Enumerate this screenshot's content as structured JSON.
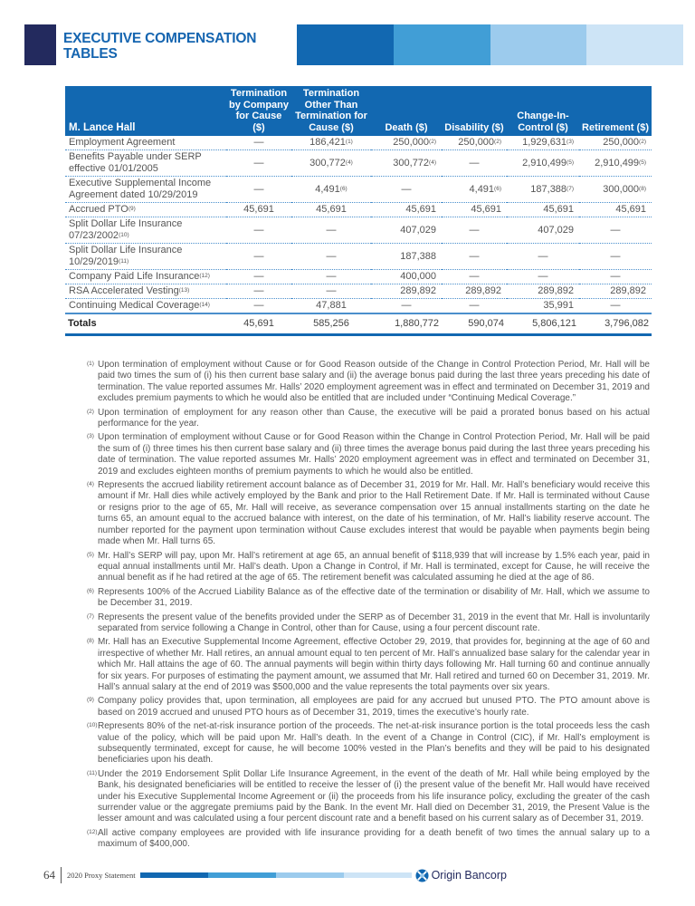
{
  "header": {
    "title_line1": "EXECUTIVE COMPENSATION",
    "title_line2": "TABLES",
    "bar_colors": [
      "#1268b1",
      "#419ed6",
      "#9ccbed",
      "#cde4f6"
    ],
    "square_color": "#232a5e"
  },
  "table": {
    "columns": [
      "M. Lance Hall",
      "Termination by Company for Cause ($)",
      "Termination Other Than Termination for Cause ($)",
      "Death ($)",
      "Disability ($)",
      "Change-In-Control ($)",
      "Retirement ($)"
    ],
    "rows": [
      {
        "label": "Employment Agreement",
        "note": "",
        "cells": [
          [
            "—",
            ""
          ],
          [
            "186,421",
            "(1)"
          ],
          [
            "250,000",
            "(2)"
          ],
          [
            "250,000",
            "(2)"
          ],
          [
            "1,929,631",
            "(3)"
          ],
          [
            "250,000",
            "(2)"
          ]
        ]
      },
      {
        "label": "Benefits Payable under SERP effective 01/01/2005",
        "note": "",
        "cells": [
          [
            "—",
            ""
          ],
          [
            "300,772",
            "(4)"
          ],
          [
            "300,772",
            "(4)"
          ],
          [
            "—",
            ""
          ],
          [
            "2,910,499",
            "(5)"
          ],
          [
            "2,910,499",
            "(5)"
          ]
        ]
      },
      {
        "label": "Executive Supplemental Income Agreement dated 10/29/2019",
        "note": "",
        "cells": [
          [
            "—",
            ""
          ],
          [
            "4,491",
            "(6)"
          ],
          [
            "—",
            ""
          ],
          [
            "4,491",
            "(6)"
          ],
          [
            "187,388",
            "(7)"
          ],
          [
            "300,000",
            "(8)"
          ]
        ]
      },
      {
        "label": "Accrued PTO",
        "note": "(9)",
        "cells": [
          [
            "45,691",
            ""
          ],
          [
            "45,691",
            ""
          ],
          [
            "45,691",
            ""
          ],
          [
            "45,691",
            ""
          ],
          [
            "45,691",
            ""
          ],
          [
            "45,691",
            ""
          ]
        ]
      },
      {
        "label": "Split Dollar Life Insurance 07/23/2002",
        "note": "(10)",
        "cells": [
          [
            "—",
            ""
          ],
          [
            "—",
            ""
          ],
          [
            "407,029",
            ""
          ],
          [
            "—",
            ""
          ],
          [
            "407,029",
            ""
          ],
          [
            "—",
            ""
          ]
        ]
      },
      {
        "label": "Split Dollar Life Insurance 10/29/2019",
        "note": "(11)",
        "cells": [
          [
            "—",
            ""
          ],
          [
            "—",
            ""
          ],
          [
            "187,388",
            ""
          ],
          [
            "—",
            ""
          ],
          [
            "—",
            ""
          ],
          [
            "—",
            ""
          ]
        ]
      },
      {
        "label": "Company Paid Life Insurance",
        "note": "(12)",
        "cells": [
          [
            "—",
            ""
          ],
          [
            "—",
            ""
          ],
          [
            "400,000",
            ""
          ],
          [
            "—",
            ""
          ],
          [
            "—",
            ""
          ],
          [
            "—",
            ""
          ]
        ]
      },
      {
        "label": "RSA Accelerated Vesting",
        "note": "(13)",
        "cells": [
          [
            "—",
            ""
          ],
          [
            "—",
            ""
          ],
          [
            "289,892",
            ""
          ],
          [
            "289,892",
            ""
          ],
          [
            "289,892",
            ""
          ],
          [
            "289,892",
            ""
          ]
        ]
      },
      {
        "label": "Continuing Medical Coverage",
        "note": "(14)",
        "cells": [
          [
            "—",
            ""
          ],
          [
            "47,881",
            ""
          ],
          [
            "—",
            ""
          ],
          [
            "—",
            ""
          ],
          [
            "35,991",
            ""
          ],
          [
            "—",
            ""
          ]
        ]
      }
    ],
    "totals": {
      "label": "Totals",
      "cells": [
        "45,691",
        "585,256",
        "1,880,772",
        "590,074",
        "5,806,121",
        "3,796,082"
      ]
    }
  },
  "footnotes": [
    {
      "n": "(1)",
      "text": "Upon termination of employment without Cause or for Good Reason outside of the Change in Control Protection Period, Mr. Hall will be paid two times the sum of (i) his then current base salary and (ii) the average bonus paid during the last three years preceding his date of termination. The value reported assumes Mr. Halls’ 2020 employment agreement was in effect and terminated on December 31, 2019 and excludes premium payments to which he would also be entitled that are included under “Continuing Medical Coverage.”"
    },
    {
      "n": "(2)",
      "text": "Upon termination of employment for any reason other than Cause, the executive will be paid a prorated bonus based on his actual performance for the year."
    },
    {
      "n": "(3)",
      "text": "Upon termination of employment without Cause or for Good Reason within the Change in Control Protection Period, Mr. Hall will be paid the sum of (i) three times his then current base salary and (ii) three times the average bonus paid during the last three years preceding his date of termination. The value reported assumes Mr. Halls’ 2020 employment agreement was in effect and terminated on December 31, 2019 and excludes eighteen months of premium payments to which he would also be entitled."
    },
    {
      "n": "(4)",
      "text": "Represents the accrued liability retirement account balance as of December 31, 2019 for Mr. Hall. Mr. Hall’s beneficiary would receive this amount if Mr. Hall dies while actively employed by the Bank and prior to the Hall Retirement Date. If Mr. Hall is terminated without Cause or resigns prior to the age of 65, Mr. Hall will receive, as severance compensation over 15 annual installments starting on the date he turns 65, an amount equal to the accrued balance with interest, on the date of his termination, of Mr. Hall’s liability reserve account. The number reported for the payment upon termination without Cause excludes interest that would be payable when payments begin being made when Mr. Hall turns 65."
    },
    {
      "n": "(5)",
      "text": "Mr. Hall’s SERP will pay, upon Mr. Hall’s retirement at age 65, an annual benefit of $118,939 that will increase by 1.5% each year, paid in equal annual installments until Mr. Hall’s death. Upon a Change in Control, if Mr. Hall is terminated, except for Cause, he will receive the annual benefit as if he had retired at the age of 65. The retirement benefit was calculated assuming he died at the age of 86."
    },
    {
      "n": "(6)",
      "text": "Represents 100% of the Accrued Liability Balance as of the effective date of the termination or disability of Mr. Hall, which we assume to be December 31, 2019."
    },
    {
      "n": "(7)",
      "text": "Represents the present value of the benefits provided under the SERP as of December 31, 2019 in the event that Mr. Hall is involuntarily separated from service following a Change in Control, other than for Cause, using a four percent discount rate."
    },
    {
      "n": "(8)",
      "text": "Mr. Hall has an Executive Supplemental Income Agreement, effective October 29, 2019, that provides for, beginning at the age of 60 and irrespective of whether Mr. Hall retires, an annual amount equal to ten percent of Mr. Hall’s annualized base salary for the calendar year in which Mr. Hall attains the age of 60. The annual payments will begin within thirty days following Mr. Hall turning 60 and continue annually for six years. For purposes of estimating the payment amount, we assumed that Mr. Hall retired and turned 60 on December 31, 2019. Mr. Hall’s annual salary at the end of 2019 was $500,000 and the value represents the total payments over six years."
    },
    {
      "n": "(9)",
      "text": "Company policy provides that, upon termination, all employees are paid for any accrued but unused PTO. The PTO amount above is based on 2019 accrued and unused PTO hours as of December 31, 2019, times the executive’s hourly rate."
    },
    {
      "n": "(10)",
      "text": "Represents 80% of the net-at-risk insurance portion of the proceeds. The net-at-risk insurance portion is the total proceeds less the cash value of the policy, which will be paid upon Mr. Hall’s death. In the event of a Change in Control (CIC), if Mr. Hall’s employment is subsequently terminated, except for cause, he will become 100% vested in the Plan’s benefits and they will be paid to his designated beneficiaries upon his death."
    },
    {
      "n": "(11)",
      "text": "Under the 2019 Endorsement Split Dollar Life Insurance Agreement, in the event of the death of Mr. Hall while being employed by the Bank, his designated beneficiaries will be entitled to receive the lesser of (i) the present value of the benefit Mr. Hall would have received under his Executive Supplemental Income Agreement or (ii) the proceeds from his life insurance policy, excluding the greater of the cash surrender value or the aggregate premiums paid by the Bank. In the event Mr. Hall died on December 31, 2019, the Present Value is the lesser amount and was calculated using a four percent discount rate and a benefit based on his current salary as of December 31, 2019."
    },
    {
      "n": "(12)",
      "text": "All active company employees are provided with life insurance providing for a death benefit of two times the annual salary up to a maximum of $400,000."
    }
  ],
  "footer": {
    "page": "64",
    "publication": "2020 Proxy Statement",
    "logo_text": "Origin Bancorp",
    "logo_icon": "origin-logo-icon"
  }
}
